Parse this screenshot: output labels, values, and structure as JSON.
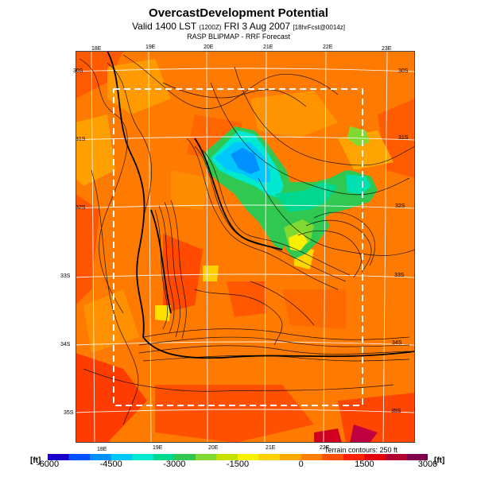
{
  "header": {
    "title": "OvercastDevelopment Potential",
    "subtitle_main": "Valid 1400 LST",
    "subtitle_small1": "(1200Z)",
    "subtitle_date": "FRI 3 Aug 2007",
    "subtitle_small2": "[18hrFcst@0014z]",
    "subsubtitle": "RASP BLIPMAP - RRF Forecast"
  },
  "map": {
    "lon_labels_top": [
      "18E",
      "19E",
      "20E",
      "21E",
      "22E",
      "23E"
    ],
    "lon_labels_bottom": [
      "18E",
      "19E",
      "20E",
      "21E",
      "22E"
    ],
    "lat_labels_left": [
      "30S",
      "31S",
      "32S",
      "33S",
      "34S",
      "35S"
    ],
    "lat_labels_right": [
      "30S",
      "31S",
      "32S",
      "33S",
      "34S",
      "35S"
    ],
    "terrain_note": "Terrain contours: 250 ft"
  },
  "colorbar": {
    "unit_left": "[ft]",
    "unit_right": "[ft]",
    "ticks": [
      "-6000",
      "-4500",
      "-3000",
      "-1500",
      "0",
      "1500",
      "3000"
    ],
    "tick_values": [
      -6000,
      -4500,
      -3000,
      -1500,
      0,
      1500,
      3000
    ],
    "min": -6000,
    "max": 3000,
    "colors": [
      "#1b00c8",
      "#0050ff",
      "#0090ff",
      "#00c8ff",
      "#00e8d0",
      "#00d890",
      "#30c850",
      "#80d830",
      "#c8e000",
      "#f8f000",
      "#ffd000",
      "#ffa800",
      "#ff8000",
      "#ff5000",
      "#ff2000",
      "#e00010",
      "#b00030",
      "#800050"
    ]
  }
}
